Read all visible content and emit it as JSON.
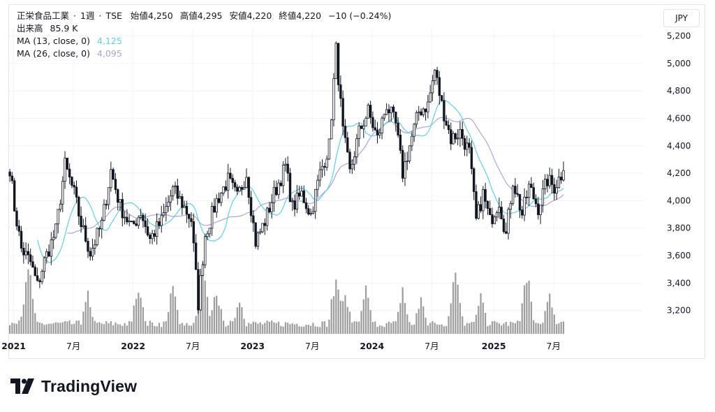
{
  "header": {
    "symbol": "正栄食品工業",
    "interval": "1週",
    "exchange": "TSE",
    "open_label": "始値",
    "open": "4,250",
    "high_label": "高値",
    "high": "4,295",
    "low_label": "安値",
    "low": "4,220",
    "close_label": "終値",
    "close": "4,220",
    "change": "−10 (−0.24%)"
  },
  "volume_line": {
    "label": "出来高",
    "value": "85.9 K"
  },
  "ma13": {
    "label": "MA (13, close, 0)",
    "value": "4,125",
    "color": "#5fd0e4"
  },
  "ma26": {
    "label": "MA (26, close, 0)",
    "value": "4,095",
    "color": "#b0a3dc"
  },
  "currency": "JPY",
  "brand": "TradingView",
  "colors": {
    "up": "#ffffff",
    "down": "#131722",
    "volume": "#9c9c9c",
    "grid": "#f0f3fa"
  },
  "chart_data": {
    "type": "candlestick",
    "interval": "weekly",
    "currency": "JPY",
    "y_ticks": [
      3200,
      3400,
      3600,
      3800,
      4000,
      4200,
      4400,
      4600,
      4800,
      5000,
      5200
    ],
    "x_tick_labels": [
      "2021",
      "7月",
      "2022",
      "7月",
      "2023",
      "7月",
      "2024",
      "7月",
      "2025",
      "7月"
    ],
    "price_path": [
      [
        "2020-12-21",
        4240
      ],
      [
        "2021-01-04",
        3950
      ],
      [
        "2021-01-25",
        3650
      ],
      [
        "2021-02-22",
        3550
      ],
      [
        "2021-03-15",
        3380
      ],
      [
        "2021-04-05",
        3560
      ],
      [
        "2021-05-10",
        3780
      ],
      [
        "2021-06-07",
        4260
      ],
      [
        "2021-07-05",
        4050
      ],
      [
        "2021-07-26",
        3830
      ],
      [
        "2021-08-23",
        3620
      ],
      [
        "2021-09-27",
        3830
      ],
      [
        "2021-10-25",
        4220
      ],
      [
        "2021-11-22",
        3960
      ],
      [
        "2021-12-27",
        3800
      ],
      [
        "2022-01-24",
        3920
      ],
      [
        "2022-02-21",
        3720
      ],
      [
        "2022-03-28",
        3850
      ],
      [
        "2022-05-02",
        4080
      ],
      [
        "2022-05-30",
        3980
      ],
      [
        "2022-06-27",
        3860
      ],
      [
        "2022-07-18",
        3250
      ],
      [
        "2022-08-08",
        3750
      ],
      [
        "2022-09-12",
        4000
      ],
      [
        "2022-10-17",
        4150
      ],
      [
        "2022-11-14",
        4020
      ],
      [
        "2022-12-12",
        4200
      ],
      [
        "2023-01-09",
        3700
      ],
      [
        "2023-02-06",
        3850
      ],
      [
        "2023-03-06",
        4050
      ],
      [
        "2023-04-10",
        4250
      ],
      [
        "2023-05-01",
        3950
      ],
      [
        "2023-05-29",
        4050
      ],
      [
        "2023-06-26",
        3900
      ],
      [
        "2023-07-24",
        4200
      ],
      [
        "2023-08-21",
        4400
      ],
      [
        "2023-09-11",
        5100
      ],
      [
        "2023-10-02",
        4500
      ],
      [
        "2023-10-23",
        4200
      ],
      [
        "2023-11-20",
        4500
      ],
      [
        "2023-12-18",
        4650
      ],
      [
        "2024-01-15",
        4450
      ],
      [
        "2024-02-12",
        4700
      ],
      [
        "2024-03-11",
        4550
      ],
      [
        "2024-04-01",
        4200
      ],
      [
        "2024-04-22",
        4400
      ],
      [
        "2024-05-20",
        4650
      ],
      [
        "2024-06-17",
        4700
      ],
      [
        "2024-07-08",
        4950
      ],
      [
        "2024-07-29",
        4700
      ],
      [
        "2024-08-26",
        4450
      ],
      [
        "2024-09-23",
        4500
      ],
      [
        "2024-10-21",
        4350
      ],
      [
        "2024-11-11",
        3850
      ],
      [
        "2024-12-02",
        4050
      ],
      [
        "2024-12-23",
        3850
      ],
      [
        "2025-01-20",
        4000
      ],
      [
        "2025-02-10",
        3750
      ],
      [
        "2025-03-03",
        4150
      ],
      [
        "2025-03-31",
        3900
      ],
      [
        "2025-04-21",
        4100
      ],
      [
        "2025-05-19",
        3950
      ],
      [
        "2025-06-16",
        4150
      ],
      [
        "2025-07-07",
        4100
      ],
      [
        "2025-08-04",
        4220
      ]
    ],
    "volume_pattern": "spiky, major peaks near 2021-02, 2023-09, 2024-04, 2024-09",
    "ma_series": [
      {
        "name": "MA (13, close, 0)",
        "period": 13,
        "color": "#5fd0e4",
        "last": 4125
      },
      {
        "name": "MA (26, close, 0)",
        "period": 26,
        "color": "#b0a3dc",
        "last": 4095
      }
    ]
  }
}
